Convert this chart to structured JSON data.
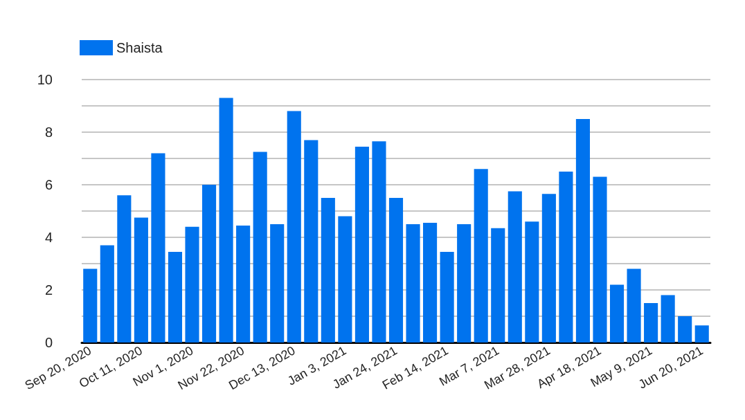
{
  "chart_data": {
    "type": "bar",
    "categories": [
      "Sep 20, 2020",
      null,
      null,
      "Oct 11, 2020",
      null,
      null,
      "Nov 1, 2020",
      null,
      null,
      "Nov 22, 2020",
      null,
      null,
      "Dec 13, 2020",
      null,
      null,
      "Jan 3, 2021",
      null,
      null,
      "Jan 24, 2021",
      null,
      null,
      "Feb 14, 2021",
      null,
      null,
      "Mar 7, 2021",
      null,
      null,
      "Mar 28, 2021",
      null,
      null,
      "Apr 18, 2021",
      null,
      null,
      "May 9, 2021",
      null,
      null,
      "Jun 20, 2021"
    ],
    "series": [
      {
        "name": "Shaista",
        "color": "#0073ee",
        "values": [
          2.8,
          3.7,
          5.6,
          4.75,
          7.2,
          3.45,
          4.4,
          6.0,
          9.3,
          4.45,
          7.25,
          4.5,
          8.8,
          7.7,
          5.5,
          4.8,
          7.45,
          7.65,
          5.5,
          4.5,
          4.55,
          3.45,
          4.5,
          6.6,
          4.35,
          5.75,
          4.6,
          5.65,
          6.5,
          8.5,
          6.3,
          2.2,
          2.8,
          1.5,
          1.8,
          1.0,
          0.65
        ]
      }
    ],
    "ylim": [
      0,
      10
    ],
    "yticks": [
      0,
      {
        "value": 1,
        "label": null
      },
      2,
      {
        "value": 3,
        "label": null
      },
      4,
      {
        "value": 5,
        "label": null
      },
      6,
      {
        "value": 7,
        "label": null
      },
      8,
      {
        "value": 9,
        "label": null
      },
      10
    ],
    "grid": "y",
    "legend": "top left"
  }
}
